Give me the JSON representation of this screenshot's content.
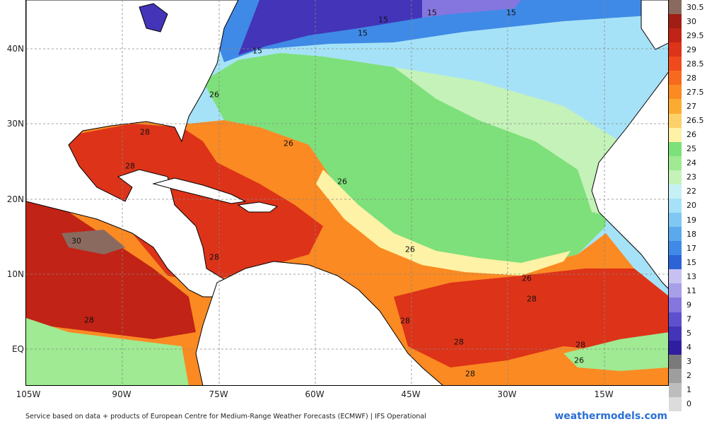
{
  "map": {
    "latitude_labels": [
      "40N",
      "30N",
      "20N",
      "10N",
      "EQ"
    ],
    "longitude_labels": [
      "105W",
      "90W",
      "75W",
      "60W",
      "45W",
      "30W",
      "15W"
    ],
    "contour_labels": [
      "15",
      "15",
      "15",
      "15",
      "15",
      "26",
      "28",
      "28",
      "26",
      "26",
      "30",
      "28",
      "26",
      "28",
      "26",
      "28",
      "28",
      "28",
      "26",
      "28",
      "28"
    ]
  },
  "legend": {
    "entries": [
      {
        "label": "30.5",
        "color": "#8a6a5f"
      },
      {
        "label": "30",
        "color": "#a01e14"
      },
      {
        "label": "29.5",
        "color": "#c12316"
      },
      {
        "label": "29",
        "color": "#dd3319"
      },
      {
        "label": "28.5",
        "color": "#ef4a1c"
      },
      {
        "label": "28",
        "color": "#f76a1d"
      },
      {
        "label": "27.5",
        "color": "#fb8a22"
      },
      {
        "label": "27",
        "color": "#fbab31"
      },
      {
        "label": "26.5",
        "color": "#fdd06a"
      },
      {
        "label": "26",
        "color": "#fdf2a6"
      },
      {
        "label": "25",
        "color": "#7ee07a"
      },
      {
        "label": "24",
        "color": "#9fea92"
      },
      {
        "label": "23",
        "color": "#c4f2b8"
      },
      {
        "label": "22",
        "color": "#c7f0f6"
      },
      {
        "label": "20",
        "color": "#a6e2f7"
      },
      {
        "label": "19",
        "color": "#7fc8f2"
      },
      {
        "label": "18",
        "color": "#5aa9ec"
      },
      {
        "label": "17",
        "color": "#3f8ae6"
      },
      {
        "label": "15",
        "color": "#2c64d8"
      },
      {
        "label": "13",
        "color": "#c7c1f2"
      },
      {
        "label": "11",
        "color": "#a89fe9"
      },
      {
        "label": "9",
        "color": "#8576df"
      },
      {
        "label": "7",
        "color": "#5f51cd"
      },
      {
        "label": "5",
        "color": "#4334b8"
      },
      {
        "label": "4",
        "color": "#2f1f9e"
      },
      {
        "label": "3",
        "color": "#7a7a7a"
      },
      {
        "label": "2",
        "color": "#9e9e9e"
      },
      {
        "label": "1",
        "color": "#bdbdbd"
      },
      {
        "label": "0",
        "color": "#dcdcdc"
      }
    ]
  },
  "footer": {
    "credit": "Service based on data + products of European Centre for Medium-Range Weather Forecasts (ECMWF) | IFS Operational",
    "brand": "weathermodels.com"
  }
}
